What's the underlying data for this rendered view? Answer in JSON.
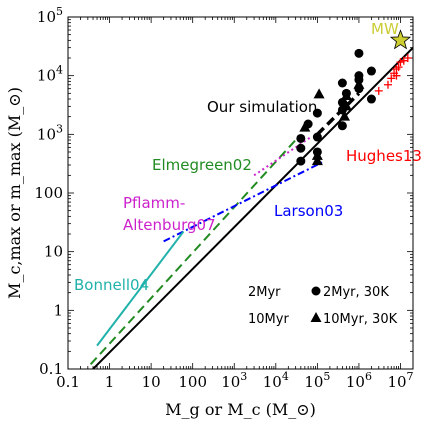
{
  "chart_data": {
    "type": "scatter",
    "xscale": "log",
    "yscale": "log",
    "xlim": [
      0.1,
      20000000
    ],
    "ylim": [
      0.1,
      100000
    ],
    "xlabel": "M_g or M_c (M_⊙)",
    "ylabel": "M_c,max or m_max (M_⊙)",
    "x_ticks": [
      {
        "value": 0.1,
        "label": "0.1"
      },
      {
        "value": 1,
        "label": "1"
      },
      {
        "value": 10,
        "label": "10"
      },
      {
        "value": 100,
        "label": "100"
      },
      {
        "value": 1000,
        "base": "10",
        "exp": "3"
      },
      {
        "value": 10000,
        "base": "10",
        "exp": "4"
      },
      {
        "value": 100000,
        "base": "10",
        "exp": "5"
      },
      {
        "value": 1000000,
        "base": "10",
        "exp": "6"
      },
      {
        "value": 10000000,
        "base": "10",
        "exp": "7"
      }
    ],
    "y_ticks": [
      {
        "value": 0.1,
        "label": "0.1"
      },
      {
        "value": 1,
        "label": "1"
      },
      {
        "value": 10,
        "label": "10"
      },
      {
        "value": 100,
        "label": "100"
      },
      {
        "value": 1000,
        "base": "10",
        "exp": "3"
      },
      {
        "value": 10000,
        "base": "10",
        "exp": "4"
      },
      {
        "value": 100000,
        "base": "10",
        "exp": "5"
      }
    ],
    "lines": [
      {
        "name": "fit",
        "color": "#000000",
        "style": "solid",
        "points": [
          [
            0.4,
            0.1
          ],
          [
            20000000,
            30000
          ]
        ]
      },
      {
        "name": "Our simulation",
        "color": "#000000",
        "style": "dashed",
        "points": [
          [
            100000,
            1000
          ],
          [
            1000000,
            5000
          ]
        ]
      },
      {
        "name": "Elmegreen02",
        "color": "#228B22",
        "style": "dashed",
        "points": [
          [
            0.35,
            0.12
          ],
          [
            30000,
            800
          ]
        ]
      },
      {
        "name": "Pflamm-Altenburg07",
        "color": "#cc22cc",
        "style": "dotted",
        "points": [
          [
            3000,
            200
          ],
          [
            70000,
            900
          ]
        ]
      },
      {
        "name": "Larson03",
        "color": "#0000ff",
        "style": "dashdot",
        "points": [
          [
            20,
            15
          ],
          [
            150000,
            350
          ]
        ]
      },
      {
        "name": "Bonnell04",
        "color": "#20b2aa",
        "style": "solid",
        "points": [
          [
            0.5,
            0.25
          ],
          [
            60,
            22
          ]
        ]
      }
    ],
    "series": [
      {
        "name": "2Myr",
        "marker": "circle",
        "color": "#000000",
        "points": [
          [
            40000,
            350
          ],
          [
            40000,
            580
          ],
          [
            40000,
            850
          ],
          [
            100000,
            500
          ],
          [
            100000,
            900
          ],
          [
            100000,
            2300
          ],
          [
            400000,
            1400
          ],
          [
            400000,
            2600
          ],
          [
            400000,
            3500
          ],
          [
            400000,
            7500
          ],
          [
            1000000,
            8500
          ],
          [
            1000000,
            10000
          ],
          [
            1000000,
            24000
          ],
          [
            2000000,
            12000
          ],
          [
            2000000,
            4000
          ],
          [
            500000,
            5000
          ],
          [
            1000000,
            6000
          ],
          [
            60000,
            1500
          ]
        ]
      },
      {
        "name": "10Myr",
        "marker": "triangle",
        "color": "#000000",
        "points": [
          [
            50000,
            1300
          ],
          [
            100000,
            350
          ],
          [
            100000,
            430
          ],
          [
            110000,
            4800
          ],
          [
            500000,
            3000
          ],
          [
            500000,
            4500
          ],
          [
            450000,
            2000
          ],
          [
            1000000,
            7000
          ]
        ]
      },
      {
        "name": "Hughes13",
        "marker": "plus",
        "color": "#ff0000",
        "points": [
          [
            3000000,
            5500
          ],
          [
            5000000,
            7000
          ],
          [
            6000000,
            9000
          ],
          [
            7000000,
            11000
          ],
          [
            8000000,
            13000
          ],
          [
            9000000,
            14000
          ],
          [
            10000000,
            17000
          ],
          [
            12000000,
            18000
          ],
          [
            15000000,
            20000
          ],
          [
            8000000,
            10000
          ]
        ]
      },
      {
        "name": "MW",
        "marker": "star",
        "color": "#cccc33",
        "points": [
          [
            10000000,
            40000
          ]
        ]
      }
    ],
    "annotations": [
      {
        "text": "Our simulation",
        "color": "#000000"
      },
      {
        "text": "Hughes13",
        "color": "#ff0000"
      },
      {
        "text": "Elmegreen02",
        "color": "#228B22"
      },
      {
        "text": "Pflamm-",
        "color": "#cc22cc"
      },
      {
        "text": "Altenburg07",
        "color": "#cc22cc"
      },
      {
        "text": "Larson03",
        "color": "#0000ff"
      },
      {
        "text": "Bonnell04",
        "color": "#20b2aa"
      },
      {
        "text": "MW",
        "color": "#cccc33"
      }
    ],
    "legend": [
      {
        "label": "2Myr",
        "marker": "none"
      },
      {
        "label": "2Myr, 30K",
        "marker": "circle"
      },
      {
        "label": "10Myr",
        "marker": "none"
      },
      {
        "label": "10Myr, 30K",
        "marker": "triangle"
      }
    ],
    "legend_position": "bottom-right"
  }
}
